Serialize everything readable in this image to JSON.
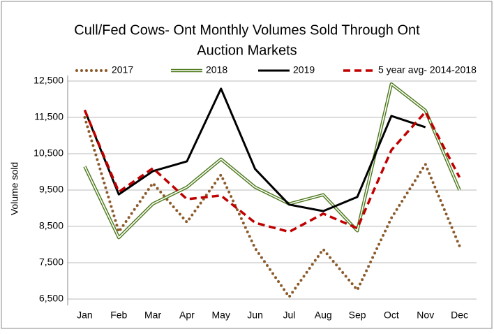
{
  "chart_data": {
    "type": "line",
    "title": [
      "Cull/Fed Cows- Ont Monthly Volumes Sold Through Ont",
      "Auction Markets"
    ],
    "y_label": "Volume sold",
    "categories": [
      "Jan",
      "Feb",
      "Mar",
      "Apr",
      "May",
      "Jun",
      "Jul",
      "Aug",
      "Sep",
      "Oct",
      "Nov",
      "Dec"
    ],
    "series": [
      {
        "name": "2017",
        "color": "#8b5a2b",
        "style": "dotted",
        "values": [
          11500,
          8350,
          9690,
          8615,
          9920,
          7900,
          6560,
          7870,
          6750,
          8730,
          10210,
          7960
        ]
      },
      {
        "name": "2018",
        "color": "#4f7a1e",
        "style": "double",
        "values": [
          10150,
          8190,
          9120,
          9580,
          10350,
          9580,
          9120,
          9370,
          8380,
          12420,
          11690,
          9500
        ]
      },
      {
        "name": "2019",
        "color": "#000000",
        "style": "solid",
        "values": [
          11700,
          9380,
          10020,
          10290,
          12290,
          10080,
          9100,
          8920,
          9310,
          11540,
          11230,
          null
        ]
      },
      {
        "name": "5 year avg- 2014-2018",
        "color": "#c00000",
        "style": "dashed",
        "values": [
          11700,
          9450,
          10100,
          9250,
          9350,
          8600,
          8350,
          8850,
          8450,
          10600,
          11650,
          9850
        ]
      }
    ],
    "ylim": [
      6500,
      12500
    ],
    "yticks": [
      {
        "value": 6500,
        "label": "6,500"
      },
      {
        "value": 7500,
        "label": "7,500"
      },
      {
        "value": 8500,
        "label": "8,500"
      },
      {
        "value": 9500,
        "label": "9,500"
      },
      {
        "value": 10500,
        "label": "10,500"
      },
      {
        "value": 11500,
        "label": "11,500"
      },
      {
        "value": 12500,
        "label": "12,500"
      }
    ],
    "grid": true,
    "legend": "top"
  }
}
